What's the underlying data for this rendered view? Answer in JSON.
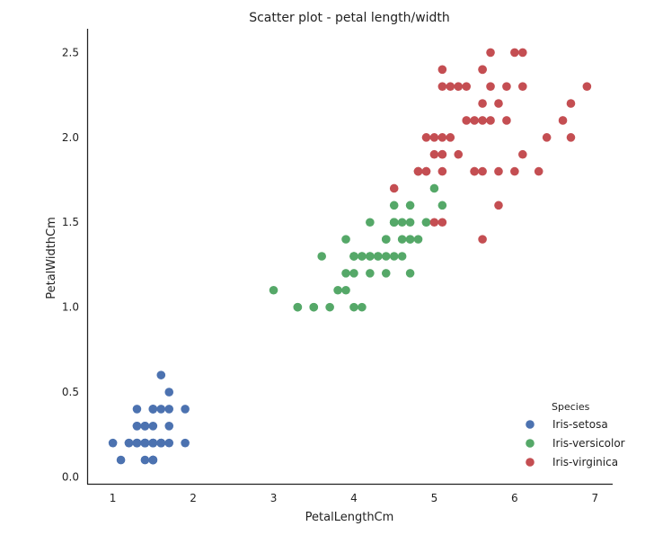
{
  "chart_data": {
    "type": "scatter",
    "title": "Scatter plot - petal length/width",
    "xlabel": "PetalLengthCm",
    "ylabel": "PetalWidthCm",
    "xlim": [
      0.68,
      7.22
    ],
    "ylim": [
      -0.04,
      2.64
    ],
    "xticks": [
      1,
      2,
      3,
      4,
      5,
      6,
      7
    ],
    "yticks": [
      0.0,
      0.5,
      1.0,
      1.5,
      2.0,
      2.5
    ],
    "grid": false,
    "legend": {
      "title": "Species",
      "position": "bottom-right"
    },
    "series": [
      {
        "name": "Iris-setosa",
        "color": "#4c72b0",
        "points": [
          [
            1.4,
            0.2
          ],
          [
            1.4,
            0.2
          ],
          [
            1.3,
            0.2
          ],
          [
            1.5,
            0.2
          ],
          [
            1.4,
            0.2
          ],
          [
            1.7,
            0.4
          ],
          [
            1.4,
            0.3
          ],
          [
            1.5,
            0.2
          ],
          [
            1.4,
            0.2
          ],
          [
            1.5,
            0.1
          ],
          [
            1.5,
            0.2
          ],
          [
            1.6,
            0.2
          ],
          [
            1.4,
            0.1
          ],
          [
            1.1,
            0.1
          ],
          [
            1.2,
            0.2
          ],
          [
            1.5,
            0.4
          ],
          [
            1.3,
            0.4
          ],
          [
            1.4,
            0.3
          ],
          [
            1.7,
            0.3
          ],
          [
            1.5,
            0.3
          ],
          [
            1.7,
            0.2
          ],
          [
            1.5,
            0.4
          ],
          [
            1.0,
            0.2
          ],
          [
            1.7,
            0.5
          ],
          [
            1.9,
            0.2
          ],
          [
            1.6,
            0.2
          ],
          [
            1.6,
            0.4
          ],
          [
            1.5,
            0.2
          ],
          [
            1.4,
            0.2
          ],
          [
            1.6,
            0.2
          ],
          [
            1.6,
            0.2
          ],
          [
            1.5,
            0.4
          ],
          [
            1.5,
            0.1
          ],
          [
            1.4,
            0.2
          ],
          [
            1.5,
            0.1
          ],
          [
            1.2,
            0.2
          ],
          [
            1.3,
            0.2
          ],
          [
            1.5,
            0.1
          ],
          [
            1.3,
            0.2
          ],
          [
            1.5,
            0.2
          ],
          [
            1.3,
            0.3
          ],
          [
            1.3,
            0.3
          ],
          [
            1.3,
            0.2
          ],
          [
            1.6,
            0.6
          ],
          [
            1.9,
            0.4
          ],
          [
            1.4,
            0.3
          ],
          [
            1.6,
            0.2
          ],
          [
            1.4,
            0.2
          ],
          [
            1.5,
            0.2
          ],
          [
            1.4,
            0.2
          ]
        ]
      },
      {
        "name": "Iris-versicolor",
        "color": "#55a868",
        "points": [
          [
            4.7,
            1.4
          ],
          [
            4.5,
            1.5
          ],
          [
            4.9,
            1.5
          ],
          [
            4.0,
            1.3
          ],
          [
            4.6,
            1.5
          ],
          [
            4.5,
            1.3
          ],
          [
            4.7,
            1.6
          ],
          [
            3.3,
            1.0
          ],
          [
            4.6,
            1.3
          ],
          [
            3.9,
            1.4
          ],
          [
            3.5,
            1.0
          ],
          [
            4.2,
            1.5
          ],
          [
            4.0,
            1.0
          ],
          [
            4.7,
            1.4
          ],
          [
            3.6,
            1.3
          ],
          [
            4.4,
            1.4
          ],
          [
            4.5,
            1.5
          ],
          [
            4.1,
            1.0
          ],
          [
            4.5,
            1.5
          ],
          [
            3.9,
            1.1
          ],
          [
            4.8,
            1.8
          ],
          [
            4.0,
            1.3
          ],
          [
            4.9,
            1.5
          ],
          [
            4.7,
            1.2
          ],
          [
            4.3,
            1.3
          ],
          [
            4.4,
            1.4
          ],
          [
            4.8,
            1.4
          ],
          [
            5.0,
            1.7
          ],
          [
            4.5,
            1.5
          ],
          [
            3.5,
            1.0
          ],
          [
            3.8,
            1.1
          ],
          [
            3.7,
            1.0
          ],
          [
            3.9,
            1.2
          ],
          [
            5.1,
            1.6
          ],
          [
            4.5,
            1.5
          ],
          [
            4.5,
            1.6
          ],
          [
            4.7,
            1.5
          ],
          [
            4.4,
            1.3
          ],
          [
            4.1,
            1.3
          ],
          [
            4.0,
            1.3
          ],
          [
            4.4,
            1.2
          ],
          [
            4.6,
            1.4
          ],
          [
            4.0,
            1.2
          ],
          [
            3.3,
            1.0
          ],
          [
            4.2,
            1.3
          ],
          [
            4.2,
            1.2
          ],
          [
            4.2,
            1.3
          ],
          [
            4.3,
            1.3
          ],
          [
            3.0,
            1.1
          ],
          [
            4.1,
            1.3
          ]
        ]
      },
      {
        "name": "Iris-virginica",
        "color": "#c44e52",
        "points": [
          [
            6.0,
            2.5
          ],
          [
            5.1,
            1.9
          ],
          [
            5.9,
            2.1
          ],
          [
            5.6,
            1.8
          ],
          [
            5.8,
            2.2
          ],
          [
            6.6,
            2.1
          ],
          [
            4.5,
            1.7
          ],
          [
            6.3,
            1.8
          ],
          [
            5.8,
            1.8
          ],
          [
            6.1,
            2.5
          ],
          [
            5.1,
            2.0
          ],
          [
            5.3,
            1.9
          ],
          [
            5.5,
            2.1
          ],
          [
            5.0,
            2.0
          ],
          [
            5.1,
            2.4
          ],
          [
            5.3,
            2.3
          ],
          [
            5.5,
            1.8
          ],
          [
            6.7,
            2.2
          ],
          [
            6.9,
            2.3
          ],
          [
            5.0,
            1.5
          ],
          [
            5.7,
            2.3
          ],
          [
            4.9,
            2.0
          ],
          [
            6.7,
            2.0
          ],
          [
            4.9,
            1.8
          ],
          [
            5.7,
            2.1
          ],
          [
            6.0,
            1.8
          ],
          [
            4.8,
            1.8
          ],
          [
            4.9,
            1.8
          ],
          [
            5.6,
            2.1
          ],
          [
            5.8,
            1.6
          ],
          [
            6.1,
            1.9
          ],
          [
            6.4,
            2.0
          ],
          [
            5.6,
            2.2
          ],
          [
            5.1,
            1.5
          ],
          [
            5.6,
            1.4
          ],
          [
            6.1,
            2.3
          ],
          [
            5.6,
            2.4
          ],
          [
            5.5,
            1.8
          ],
          [
            4.8,
            1.8
          ],
          [
            5.4,
            2.1
          ],
          [
            5.6,
            2.4
          ],
          [
            5.1,
            2.3
          ],
          [
            5.1,
            1.9
          ],
          [
            5.9,
            2.3
          ],
          [
            5.7,
            2.5
          ],
          [
            5.2,
            2.3
          ],
          [
            5.0,
            1.9
          ],
          [
            5.2,
            2.0
          ],
          [
            5.4,
            2.3
          ],
          [
            5.1,
            1.8
          ]
        ]
      }
    ]
  }
}
